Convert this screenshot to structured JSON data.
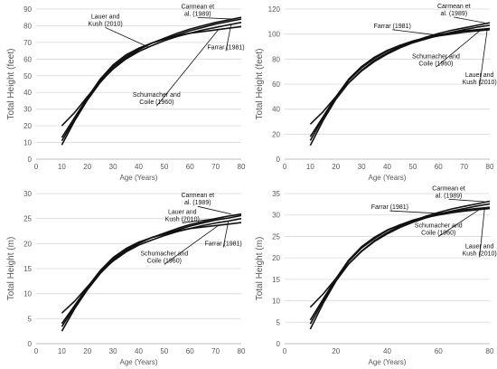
{
  "chart_data": [
    {
      "type": "line",
      "xlabel": "Age (Years)",
      "ylabel": "Total Height  (feet)",
      "xlim": [
        0,
        80
      ],
      "ylim": [
        0,
        90
      ],
      "xticks": [
        0,
        10,
        20,
        30,
        40,
        50,
        60,
        70,
        80
      ],
      "yticks": [
        0,
        10,
        20,
        30,
        40,
        50,
        60,
        70,
        80,
        90
      ],
      "x": [
        10,
        15,
        20,
        25,
        30,
        35,
        40,
        45,
        50,
        55,
        60,
        65,
        70,
        75,
        80
      ],
      "series": [
        {
          "name": "Carmean et al. (1989)",
          "values": [
            8.5,
            23,
            35.5,
            46,
            54.5,
            60.5,
            65.5,
            69.5,
            72.5,
            75.5,
            78,
            80,
            82,
            83.5,
            85
          ]
        },
        {
          "name": "Lauer and Kush (2010)",
          "values": [
            11,
            24,
            36.5,
            47.5,
            55.5,
            61.5,
            66,
            69.5,
            72,
            74.5,
            77,
            79,
            81,
            82.5,
            84
          ]
        },
        {
          "name": "Schumacher and Coile (1960)",
          "values": [
            13,
            25,
            37,
            48,
            56.5,
            62.5,
            66.5,
            69.5,
            72,
            74,
            75.5,
            76.5,
            77.5,
            78.5,
            79.5
          ]
        },
        {
          "name": "Farrar (1981)",
          "values": [
            20,
            28,
            37.5,
            46.5,
            54,
            60,
            64.5,
            68,
            71,
            73.5,
            75.5,
            77.5,
            79,
            80.5,
            82
          ]
        }
      ],
      "annotations": [
        {
          "text": "Carmean et al. (1989)",
          "x": 63,
          "y": 86,
          "ax": 77,
          "ay": 84
        },
        {
          "text": "Lauer and Kush (2010)",
          "x": 27,
          "y": 80,
          "ax": 44,
          "ay": 67
        },
        {
          "text": "Schumacher and Coile (1960)",
          "x": 47,
          "y": 33,
          "ax": 71,
          "ay": 77.5
        },
        {
          "text": "Farrar (1981)",
          "x": 74,
          "y": 66,
          "ax": 76,
          "ay": 80.5
        }
      ]
    },
    {
      "type": "line",
      "xlabel": "Age (Years)",
      "ylabel": "Total Height  (feet)",
      "xlim": [
        0,
        80
      ],
      "ylim": [
        0,
        120
      ],
      "xticks": [
        0,
        10,
        20,
        30,
        40,
        50,
        60,
        70,
        80
      ],
      "yticks": [
        0,
        20,
        40,
        60,
        80,
        100,
        120
      ],
      "x": [
        10,
        15,
        20,
        25,
        30,
        35,
        40,
        45,
        50,
        55,
        60,
        65,
        70,
        75,
        80
      ],
      "series": [
        {
          "name": "Carmean et al. (1989)",
          "values": [
            11,
            31,
            48,
            61,
            71,
            79,
            85,
            90,
            94,
            97.5,
            100.5,
            103,
            105,
            107,
            109
          ]
        },
        {
          "name": "Lauer and Kush (2010)",
          "values": [
            15,
            33,
            49.5,
            63,
            73,
            80.5,
            86.5,
            91,
            94.5,
            97,
            99.5,
            101,
            102.5,
            103.5,
            104.5
          ]
        },
        {
          "name": "Schumacher and Coile (1960)",
          "values": [
            18,
            34,
            50,
            64,
            74,
            81.5,
            87,
            91,
            94,
            96.5,
            98.5,
            100,
            101.5,
            102.5,
            103.5
          ]
        },
        {
          "name": "Farrar (1981)",
          "values": [
            28,
            38,
            50,
            61,
            70.5,
            78,
            84,
            89,
            93,
            96,
            99,
            101.5,
            103.5,
            105.5,
            107
          ]
        }
      ],
      "annotations": [
        {
          "text": "Carmean et al. (1989)",
          "x": 66,
          "y": 115,
          "ax": 78,
          "ay": 109
        },
        {
          "text": "Farrar (1981)",
          "x": 42,
          "y": 105,
          "ax": 60,
          "ay": 99
        },
        {
          "text": "Schumacher and Coile (1960)",
          "x": 59,
          "y": 75,
          "ax": 76,
          "ay": 102.5
        },
        {
          "text": "Lauer and Kush (2010)",
          "x": 76,
          "y": 60,
          "ax": 79,
          "ay": 103.5
        }
      ]
    },
    {
      "type": "line",
      "xlabel": "Age (Years)",
      "ylabel": "Total Height  (m)",
      "xlim": [
        0,
        80
      ],
      "ylim": [
        0,
        30
      ],
      "xticks": [
        0,
        10,
        20,
        30,
        40,
        50,
        60,
        70,
        80
      ],
      "yticks": [
        0,
        5,
        10,
        15,
        20,
        25,
        30
      ],
      "x": [
        10,
        15,
        20,
        25,
        30,
        35,
        40,
        45,
        50,
        55,
        60,
        65,
        70,
        75,
        80
      ],
      "series": [
        {
          "name": "Carmean et al. (1989)",
          "values": [
            2.5,
            7,
            10.8,
            14,
            16.6,
            18.4,
            20,
            21.2,
            22.1,
            23,
            23.8,
            24.4,
            25,
            25.5,
            25.9
          ]
        },
        {
          "name": "Lauer and Kush (2010)",
          "values": [
            3.4,
            7.3,
            11.1,
            14.5,
            16.9,
            18.7,
            20.1,
            21.2,
            21.9,
            22.7,
            23.5,
            24.1,
            24.7,
            25.1,
            25.6
          ]
        },
        {
          "name": "Schumacher and Coile (1960)",
          "values": [
            4,
            7.6,
            11.3,
            14.6,
            17.2,
            19,
            20.3,
            21.2,
            21.9,
            22.5,
            23,
            23.3,
            23.6,
            23.9,
            24.2
          ]
        },
        {
          "name": "Farrar (1981)",
          "values": [
            6.1,
            8.5,
            11.4,
            14.2,
            16.5,
            18.3,
            19.7,
            20.7,
            21.6,
            22.4,
            23,
            23.6,
            24.1,
            24.5,
            25
          ]
        }
      ],
      "annotations": [
        {
          "text": "Carmean et al. (1989)",
          "x": 63,
          "y": 27.8,
          "ax": 76,
          "ay": 25.9
        },
        {
          "text": "Lauer and Kush (2010)",
          "x": 57,
          "y": 24.5,
          "ax": 73,
          "ay": 25.2
        },
        {
          "text": "Schumacher and Coile (1960)",
          "x": 50,
          "y": 16.2,
          "ax": 71,
          "ay": 23.6
        },
        {
          "text": "Farrar (1981)",
          "x": 73,
          "y": 19.6,
          "ax": 75,
          "ay": 24.5
        }
      ]
    },
    {
      "type": "line",
      "xlabel": "Age (Years)",
      "ylabel": "Total Height  (m)",
      "xlim": [
        0,
        80
      ],
      "ylim": [
        0,
        35
      ],
      "xticks": [
        0,
        20,
        40,
        60,
        80
      ],
      "yticks": [
        0,
        5,
        10,
        15,
        20,
        25,
        30,
        35
      ],
      "x": [
        10,
        15,
        20,
        25,
        30,
        35,
        40,
        45,
        50,
        55,
        60,
        65,
        70,
        75,
        80
      ],
      "series": [
        {
          "name": "Carmean et al. (1989)",
          "values": [
            3.4,
            9.4,
            14.6,
            18.6,
            21.6,
            24,
            25.9,
            27.4,
            28.6,
            29.7,
            30.6,
            31.4,
            32,
            32.6,
            33.2
          ]
        },
        {
          "name": "Lauer and Kush (2010)",
          "values": [
            4.6,
            10,
            15.1,
            19.2,
            22.3,
            24.5,
            26.4,
            27.7,
            28.8,
            29.6,
            30.3,
            30.8,
            31.2,
            31.5,
            31.8
          ]
        },
        {
          "name": "Schumacher and Coile (1960)",
          "values": [
            5.5,
            10.4,
            15.2,
            19.5,
            22.6,
            24.8,
            26.5,
            27.7,
            28.7,
            29.4,
            30,
            30.5,
            30.9,
            31.2,
            31.5
          ]
        },
        {
          "name": "Farrar (1981)",
          "values": [
            8.5,
            11.6,
            15.2,
            18.6,
            21.5,
            23.8,
            25.6,
            27.1,
            28.3,
            29.3,
            30.2,
            30.9,
            31.5,
            32.1,
            32.6
          ]
        }
      ],
      "annotations": [
        {
          "text": "Carmean et al. (1989)",
          "x": 64,
          "y": 34.1,
          "ax": 78,
          "ay": 33.1
        },
        {
          "text": "Farrar (1981)",
          "x": 41,
          "y": 31.4,
          "ax": 62,
          "ay": 30.3
        },
        {
          "text": "Schumacher and Coile (1960)",
          "x": 60,
          "y": 25.4,
          "ax": 76,
          "ay": 31.3
        },
        {
          "text": "Lauer and Kush (2010)",
          "x": 76,
          "y": 20.6,
          "ax": 78,
          "ay": 31.6
        }
      ]
    }
  ]
}
